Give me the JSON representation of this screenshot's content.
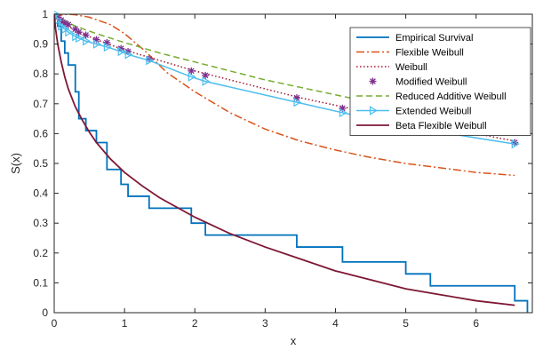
{
  "chart_data": {
    "type": "line",
    "title": "",
    "xlabel": "x",
    "ylabel": "S(x)",
    "xlim": [
      0,
      6.8
    ],
    "ylim": [
      0,
      1
    ],
    "x_ticks": [
      0,
      1,
      2,
      3,
      4,
      5,
      6
    ],
    "y_ticks": [
      0,
      0.1,
      0.2,
      0.3,
      0.4,
      0.5,
      0.6,
      0.7,
      0.8,
      0.9,
      1
    ],
    "grid": false,
    "legend_position": "top-right",
    "series": [
      {
        "name": "Empirical Survival",
        "style": "step",
        "color": "#0072BD",
        "x": [
          0,
          0.05,
          0.1,
          0.15,
          0.2,
          0.3,
          0.35,
          0.45,
          0.6,
          0.75,
          0.95,
          1.05,
          1.35,
          1.95,
          2.15,
          3.45,
          4.1,
          5.0,
          5.35,
          6.55
        ],
        "y": [
          1,
          0.96,
          0.91,
          0.87,
          0.83,
          0.74,
          0.65,
          0.61,
          0.57,
          0.48,
          0.43,
          0.39,
          0.35,
          0.3,
          0.26,
          0.22,
          0.17,
          0.13,
          0.09,
          0.04
        ],
        "end_x": 6.55,
        "end_y": 0.04
      },
      {
        "name": "Flexible Weibull",
        "style": "dashdot",
        "color": "#D95319",
        "x": [
          0.01,
          0.1,
          0.2,
          0.3,
          0.5,
          0.8,
          1.0,
          1.3,
          1.6,
          2.0,
          2.5,
          3.0,
          3.5,
          4.0,
          4.5,
          5.0,
          5.5,
          6.0,
          6.55
        ],
        "y": [
          0.99,
          0.997,
          1.0,
          0.998,
          0.99,
          0.965,
          0.935,
          0.875,
          0.805,
          0.74,
          0.67,
          0.615,
          0.575,
          0.545,
          0.52,
          0.5,
          0.485,
          0.47,
          0.46
        ]
      },
      {
        "name": "Weibull",
        "style": "dotted",
        "color": "#A2142F",
        "x": [
          0,
          0.1,
          0.3,
          0.6,
          1.0,
          1.5,
          2.0,
          2.5,
          3.0,
          3.5,
          4.0,
          4.5,
          5.0,
          5.5,
          6.0,
          6.55
        ],
        "y": [
          1,
          0.975,
          0.945,
          0.915,
          0.88,
          0.845,
          0.81,
          0.78,
          0.75,
          0.72,
          0.695,
          0.67,
          0.645,
          0.62,
          0.6,
          0.575
        ]
      },
      {
        "name": "Modified Weibull",
        "style": "marker",
        "color": "#7E2F8E",
        "x": [
          0.05,
          0.1,
          0.15,
          0.2,
          0.3,
          0.35,
          0.45,
          0.6,
          0.75,
          0.95,
          1.05,
          1.35,
          1.95,
          2.15,
          3.45,
          4.1,
          5.0,
          5.35,
          6.55
        ],
        "y": [
          0.99,
          0.98,
          0.97,
          0.965,
          0.95,
          0.94,
          0.93,
          0.915,
          0.905,
          0.885,
          0.875,
          0.85,
          0.81,
          0.795,
          0.72,
          0.685,
          0.64,
          0.625,
          0.57
        ]
      },
      {
        "name": "Reduced Additive Weibull",
        "style": "dashed",
        "color": "#77AC30",
        "x": [
          0,
          0.1,
          0.3,
          0.6,
          1.0,
          1.5,
          2.0,
          2.5,
          3.0,
          3.5,
          4.0,
          4.5,
          5.0,
          5.5,
          6.0,
          6.55
        ],
        "y": [
          1,
          0.985,
          0.96,
          0.935,
          0.905,
          0.87,
          0.84,
          0.81,
          0.78,
          0.755,
          0.73,
          0.705,
          0.68,
          0.655,
          0.635,
          0.61
        ]
      },
      {
        "name": "Extended Weibull",
        "style": "line-marker",
        "color": "#4DBEEE",
        "x": [
          0.02,
          0.05,
          0.1,
          0.15,
          0.2,
          0.3,
          0.35,
          0.45,
          0.6,
          0.75,
          0.95,
          1.05,
          1.35,
          1.95,
          2.15,
          3.45,
          4.1,
          5.0,
          5.35,
          6.55
        ],
        "y": [
          1,
          0.98,
          0.96,
          0.95,
          0.94,
          0.925,
          0.92,
          0.91,
          0.9,
          0.89,
          0.875,
          0.865,
          0.845,
          0.79,
          0.775,
          0.705,
          0.67,
          0.625,
          0.61,
          0.565
        ]
      },
      {
        "name": "Beta Flexible Weibull",
        "style": "solid",
        "color": "#7E1734",
        "x": [
          0,
          0.02,
          0.05,
          0.1,
          0.15,
          0.2,
          0.3,
          0.4,
          0.5,
          0.6,
          0.8,
          1.0,
          1.25,
          1.5,
          2.0,
          2.5,
          3.0,
          3.5,
          4.0,
          4.5,
          5.0,
          5.5,
          6.0,
          6.55
        ],
        "y": [
          1,
          0.95,
          0.9,
          0.84,
          0.79,
          0.75,
          0.69,
          0.645,
          0.605,
          0.57,
          0.515,
          0.47,
          0.425,
          0.385,
          0.32,
          0.265,
          0.22,
          0.18,
          0.14,
          0.11,
          0.08,
          0.06,
          0.04,
          0.025
        ]
      }
    ]
  }
}
